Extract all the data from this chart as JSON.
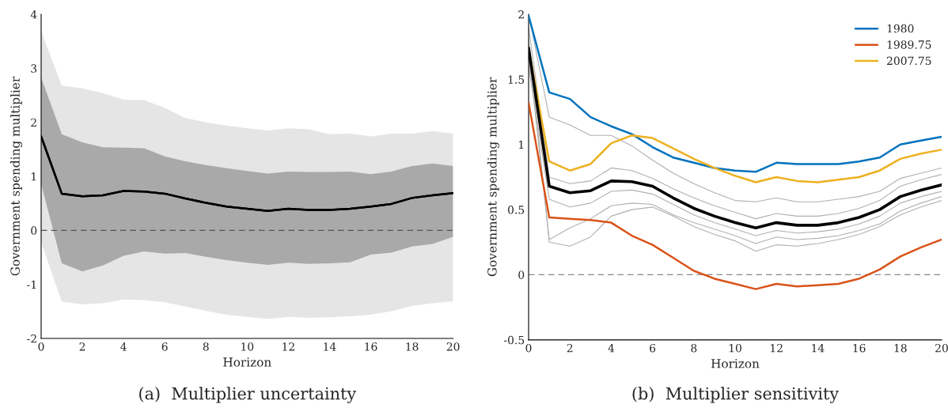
{
  "chart_data": [
    {
      "type": "line",
      "xlabel": "Horizon",
      "ylabel": "Government spending multiplier",
      "x": [
        0,
        1,
        2,
        3,
        4,
        5,
        6,
        7,
        8,
        9,
        10,
        11,
        12,
        13,
        14,
        15,
        16,
        17,
        18,
        19,
        20
      ],
      "xlim": [
        0,
        20
      ],
      "xticks": [
        0,
        2,
        4,
        6,
        8,
        10,
        12,
        14,
        16,
        18,
        20
      ],
      "ylim": [
        -2,
        4
      ],
      "yticks": [
        -2,
        -1,
        0,
        1,
        2,
        3,
        4
      ],
      "grid": false,
      "legend": false,
      "series": [
        {
          "color": "#000000",
          "values": [
            1.74,
            0.68,
            0.63,
            0.65,
            0.73,
            0.72,
            0.68,
            0.59,
            0.51,
            0.44,
            0.4,
            0.36,
            0.4,
            0.38,
            0.38,
            0.4,
            0.44,
            0.49,
            0.6,
            0.65,
            0.69
          ],
          "lower": [
            -0.22,
            -1.32,
            -1.37,
            -1.35,
            -1.28,
            -1.29,
            -1.33,
            -1.41,
            -1.49,
            -1.56,
            -1.6,
            -1.64,
            -1.6,
            -1.62,
            -1.61,
            -1.59,
            -1.56,
            -1.5,
            -1.4,
            -1.35,
            -1.31
          ],
          "upper": [
            3.69,
            2.68,
            2.63,
            2.54,
            2.42,
            2.41,
            2.27,
            2.08,
            2.0,
            1.94,
            1.89,
            1.85,
            1.89,
            1.87,
            1.78,
            1.79,
            1.74,
            1.79,
            1.79,
            1.84,
            1.79
          ]
        },
        {
          "color": "#000000",
          "values": [
            1.74,
            0.68,
            0.63,
            0.65,
            0.73,
            0.72,
            0.68,
            0.59,
            0.51,
            0.44,
            0.4,
            0.36,
            0.4,
            0.38,
            0.38,
            0.4,
            0.44,
            0.49,
            0.6,
            0.65,
            0.69
          ],
          "lower": [
            0.86,
            -0.61,
            -0.76,
            -0.65,
            -0.47,
            -0.39,
            -0.43,
            -0.42,
            -0.49,
            -0.55,
            -0.6,
            -0.64,
            -0.6,
            -0.62,
            -0.61,
            -0.59,
            -0.45,
            -0.41,
            -0.3,
            -0.25,
            -0.12
          ],
          "upper": [
            2.83,
            1.78,
            1.63,
            1.54,
            1.53,
            1.52,
            1.37,
            1.28,
            1.21,
            1.15,
            1.1,
            1.05,
            1.09,
            1.08,
            1.08,
            1.09,
            1.04,
            1.09,
            1.19,
            1.24,
            1.19
          ]
        }
      ],
      "ref_lines": [
        {
          "axis": "y",
          "value": 0,
          "color": "#555555",
          "line_style": "dashed"
        }
      ],
      "annotations": [
        "(a)  Multiplier uncertainty"
      ]
    },
    {
      "type": "line",
      "xlabel": "Horizon",
      "ylabel": "Government spending multiplier",
      "x": [
        0,
        1,
        2,
        3,
        4,
        5,
        6,
        7,
        8,
        9,
        10,
        11,
        12,
        13,
        14,
        15,
        16,
        17,
        18,
        19,
        20
      ],
      "xlim": [
        0,
        20
      ],
      "xticks": [
        0,
        2,
        4,
        6,
        8,
        10,
        12,
        14,
        16,
        18,
        20
      ],
      "ylim": [
        -0.5,
        2
      ],
      "yticks": [
        -0.5,
        0,
        0.5,
        1,
        1.5,
        2
      ],
      "grid": false,
      "legend": "top right",
      "series": [
        {
          "color": "#b0b0b0",
          "values": [
            2.0,
            1.21,
            1.15,
            1.07,
            1.07,
            0.99,
            0.88,
            0.78,
            0.7,
            0.63,
            0.57,
            0.56,
            0.59,
            0.56,
            0.56,
            0.58,
            0.6,
            0.64,
            0.74,
            0.78,
            0.82
          ]
        },
        {
          "color": "#b0b0b0",
          "values": [
            1.9,
            0.75,
            0.7,
            0.72,
            0.82,
            0.8,
            0.74,
            0.66,
            0.59,
            0.53,
            0.48,
            0.43,
            0.47,
            0.45,
            0.45,
            0.47,
            0.51,
            0.57,
            0.68,
            0.73,
            0.77
          ]
        },
        {
          "color": "#b0b0b0",
          "values": [
            1.6,
            0.58,
            0.52,
            0.55,
            0.64,
            0.65,
            0.62,
            0.54,
            0.46,
            0.4,
            0.35,
            0.3,
            0.34,
            0.32,
            0.33,
            0.35,
            0.39,
            0.45,
            0.55,
            0.6,
            0.64
          ]
        },
        {
          "color": "#b0b0b0",
          "values": [
            1.7,
            0.27,
            0.36,
            0.43,
            0.53,
            0.55,
            0.54,
            0.46,
            0.4,
            0.35,
            0.3,
            0.24,
            0.29,
            0.27,
            0.28,
            0.3,
            0.34,
            0.39,
            0.49,
            0.55,
            0.6
          ]
        },
        {
          "color": "#b0b0b0",
          "values": [
            1.8,
            0.25,
            0.22,
            0.29,
            0.45,
            0.5,
            0.52,
            0.45,
            0.37,
            0.31,
            0.26,
            0.18,
            0.23,
            0.22,
            0.24,
            0.27,
            0.31,
            0.37,
            0.46,
            0.52,
            0.57
          ]
        },
        {
          "name": "1980",
          "color": "#0072bd",
          "values": [
            1.99,
            1.4,
            1.35,
            1.21,
            1.14,
            1.08,
            0.98,
            0.9,
            0.86,
            0.82,
            0.8,
            0.79,
            0.86,
            0.85,
            0.85,
            0.85,
            0.87,
            0.9,
            1.0,
            1.03,
            1.06
          ]
        },
        {
          "name": "1989.75",
          "color": "#d95319",
          "values": [
            1.32,
            0.44,
            0.43,
            0.42,
            0.4,
            0.3,
            0.23,
            0.13,
            0.03,
            -0.03,
            -0.07,
            -0.11,
            -0.07,
            -0.09,
            -0.08,
            -0.07,
            -0.03,
            0.04,
            0.14,
            0.21,
            0.27
          ]
        },
        {
          "name": "2007.75",
          "color": "#edb120",
          "values": [
            1.74,
            0.87,
            0.8,
            0.85,
            1.01,
            1.07,
            1.05,
            0.97,
            0.89,
            0.82,
            0.76,
            0.71,
            0.75,
            0.72,
            0.71,
            0.73,
            0.75,
            0.8,
            0.89,
            0.93,
            0.96
          ]
        },
        {
          "color": "#000000",
          "values": [
            1.74,
            0.68,
            0.63,
            0.645,
            0.72,
            0.715,
            0.68,
            0.59,
            0.51,
            0.45,
            0.4,
            0.36,
            0.4,
            0.38,
            0.38,
            0.4,
            0.44,
            0.5,
            0.6,
            0.65,
            0.69
          ]
        }
      ],
      "ref_lines": [
        {
          "axis": "y",
          "value": 0,
          "color": "#888888",
          "line_style": "dashed"
        }
      ],
      "annotations": [
        "(b)  Multiplier sensitivity"
      ]
    }
  ]
}
